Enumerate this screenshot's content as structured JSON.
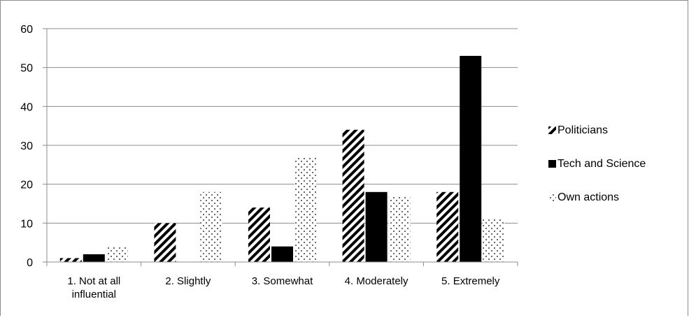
{
  "chart_data": {
    "type": "bar",
    "categories": [
      "1. Not at all influential",
      "2. Slightly",
      "3. Somewhat",
      "4. Moderately",
      "5. Extremely"
    ],
    "category_lines": [
      [
        "1. Not at all",
        "influential"
      ],
      [
        "2. Slightly"
      ],
      [
        "3. Somewhat"
      ],
      [
        "4. Moderately"
      ],
      [
        "5. Extremely"
      ]
    ],
    "series": [
      {
        "name": "Politicians",
        "values": [
          1,
          10,
          14,
          34,
          18
        ],
        "pattern": "diagonal-stripes",
        "color": "#000000"
      },
      {
        "name": "Tech and Science",
        "values": [
          2,
          0,
          4,
          18,
          53
        ],
        "pattern": "solid",
        "color": "#000000"
      },
      {
        "name": "Own actions",
        "values": [
          4,
          18,
          27,
          17,
          11
        ],
        "pattern": "dots",
        "color": "#000000"
      }
    ],
    "ylim": [
      0,
      60
    ],
    "yticks": [
      "0",
      "10",
      "20",
      "30",
      "40",
      "50",
      "60"
    ],
    "grid": true,
    "legend": "right",
    "title": "",
    "xlabel": "",
    "ylabel": ""
  }
}
